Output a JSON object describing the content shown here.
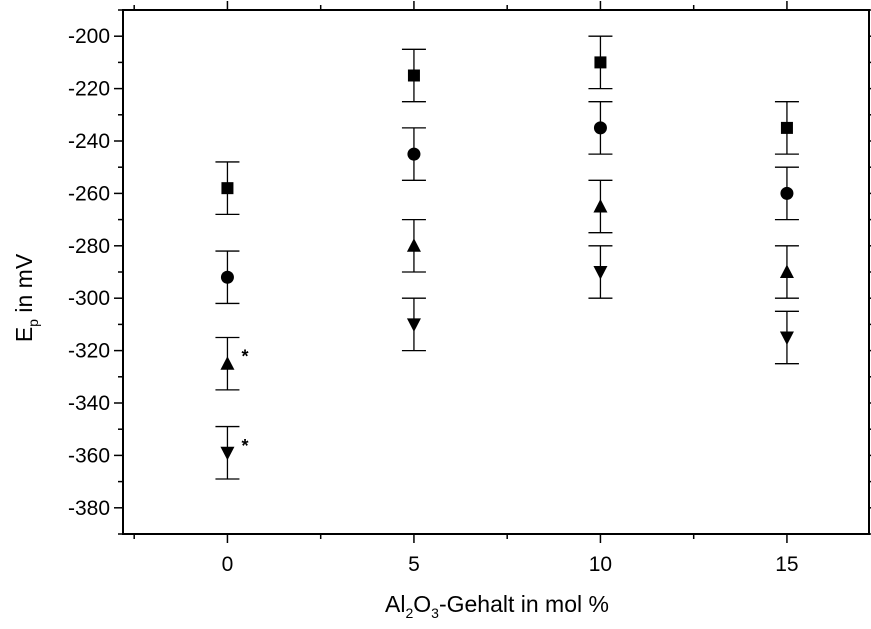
{
  "chart_data": {
    "type": "scatter",
    "title": "",
    "xlabel": {
      "main": "Al",
      "sub1": "2",
      "mid": "O",
      "sub2": "3",
      "rest": "-Gehalt in mol %"
    },
    "ylabel": {
      "main": "E",
      "sub": "p",
      "rest": " in mV"
    },
    "xlim": [
      -2.8,
      17.2
    ],
    "ylim": [
      -390,
      -190
    ],
    "xticks": [
      0,
      5,
      10,
      15
    ],
    "yticks": [
      -380,
      -360,
      -340,
      -320,
      -300,
      -280,
      -260,
      -240,
      -220,
      -200
    ],
    "xtick_labels": [
      "0",
      "5",
      "10",
      "15"
    ],
    "ytick_labels": [
      "-380",
      "-360",
      "-340",
      "-320",
      "-300",
      "-280",
      "-260",
      "-240",
      "-220",
      "-200"
    ],
    "grid": false,
    "legend": "none",
    "series": [
      {
        "marker": "square",
        "color": "#000000",
        "points": [
          {
            "x": 0,
            "y": -258,
            "err": 10
          },
          {
            "x": 5,
            "y": -215,
            "err": 10
          },
          {
            "x": 10,
            "y": -210,
            "err": 10
          },
          {
            "x": 15,
            "y": -235,
            "err": 10
          }
        ]
      },
      {
        "marker": "circle",
        "color": "#000000",
        "points": [
          {
            "x": 0,
            "y": -292,
            "err": 10
          },
          {
            "x": 5,
            "y": -245,
            "err": 10
          },
          {
            "x": 10,
            "y": -235,
            "err": 10
          },
          {
            "x": 15,
            "y": -260,
            "err": 10
          }
        ]
      },
      {
        "marker": "triangle-up",
        "color": "#000000",
        "points": [
          {
            "x": 0,
            "y": -325,
            "err": 10,
            "note": "*"
          },
          {
            "x": 5,
            "y": -280,
            "err": 10
          },
          {
            "x": 10,
            "y": -265,
            "err": 10
          },
          {
            "x": 15,
            "y": -290,
            "err": 10
          }
        ]
      },
      {
        "marker": "triangle-down",
        "color": "#000000",
        "points": [
          {
            "x": 0,
            "y": -359,
            "err": 10,
            "note": "*"
          },
          {
            "x": 5,
            "y": -310,
            "err": 10
          },
          {
            "x": 10,
            "y": -290,
            "err": 10
          },
          {
            "x": 15,
            "y": -315,
            "err": 10
          }
        ]
      }
    ]
  }
}
